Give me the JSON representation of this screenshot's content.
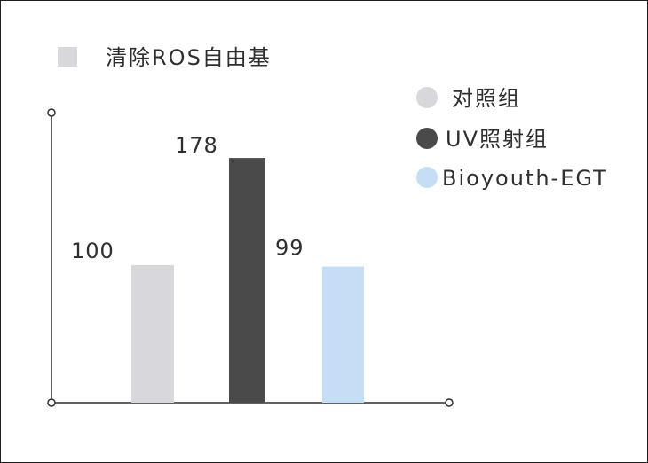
{
  "chart_data": {
    "type": "bar",
    "title": "清除ROS自由基",
    "categories": [
      "对照组",
      "UV照射组",
      "Bioyouth-EGT"
    ],
    "values": [
      100,
      178,
      99
    ],
    "ylim": [
      0,
      200
    ],
    "grid": false,
    "legend_placement": "top-right",
    "colors": {
      "title_marker": "#d8d7dc",
      "series": [
        "#d8d7dc",
        "#4a4a4a",
        "#c6def5"
      ],
      "axis": "#2f2f2f",
      "text": "#2f2f2f"
    }
  }
}
